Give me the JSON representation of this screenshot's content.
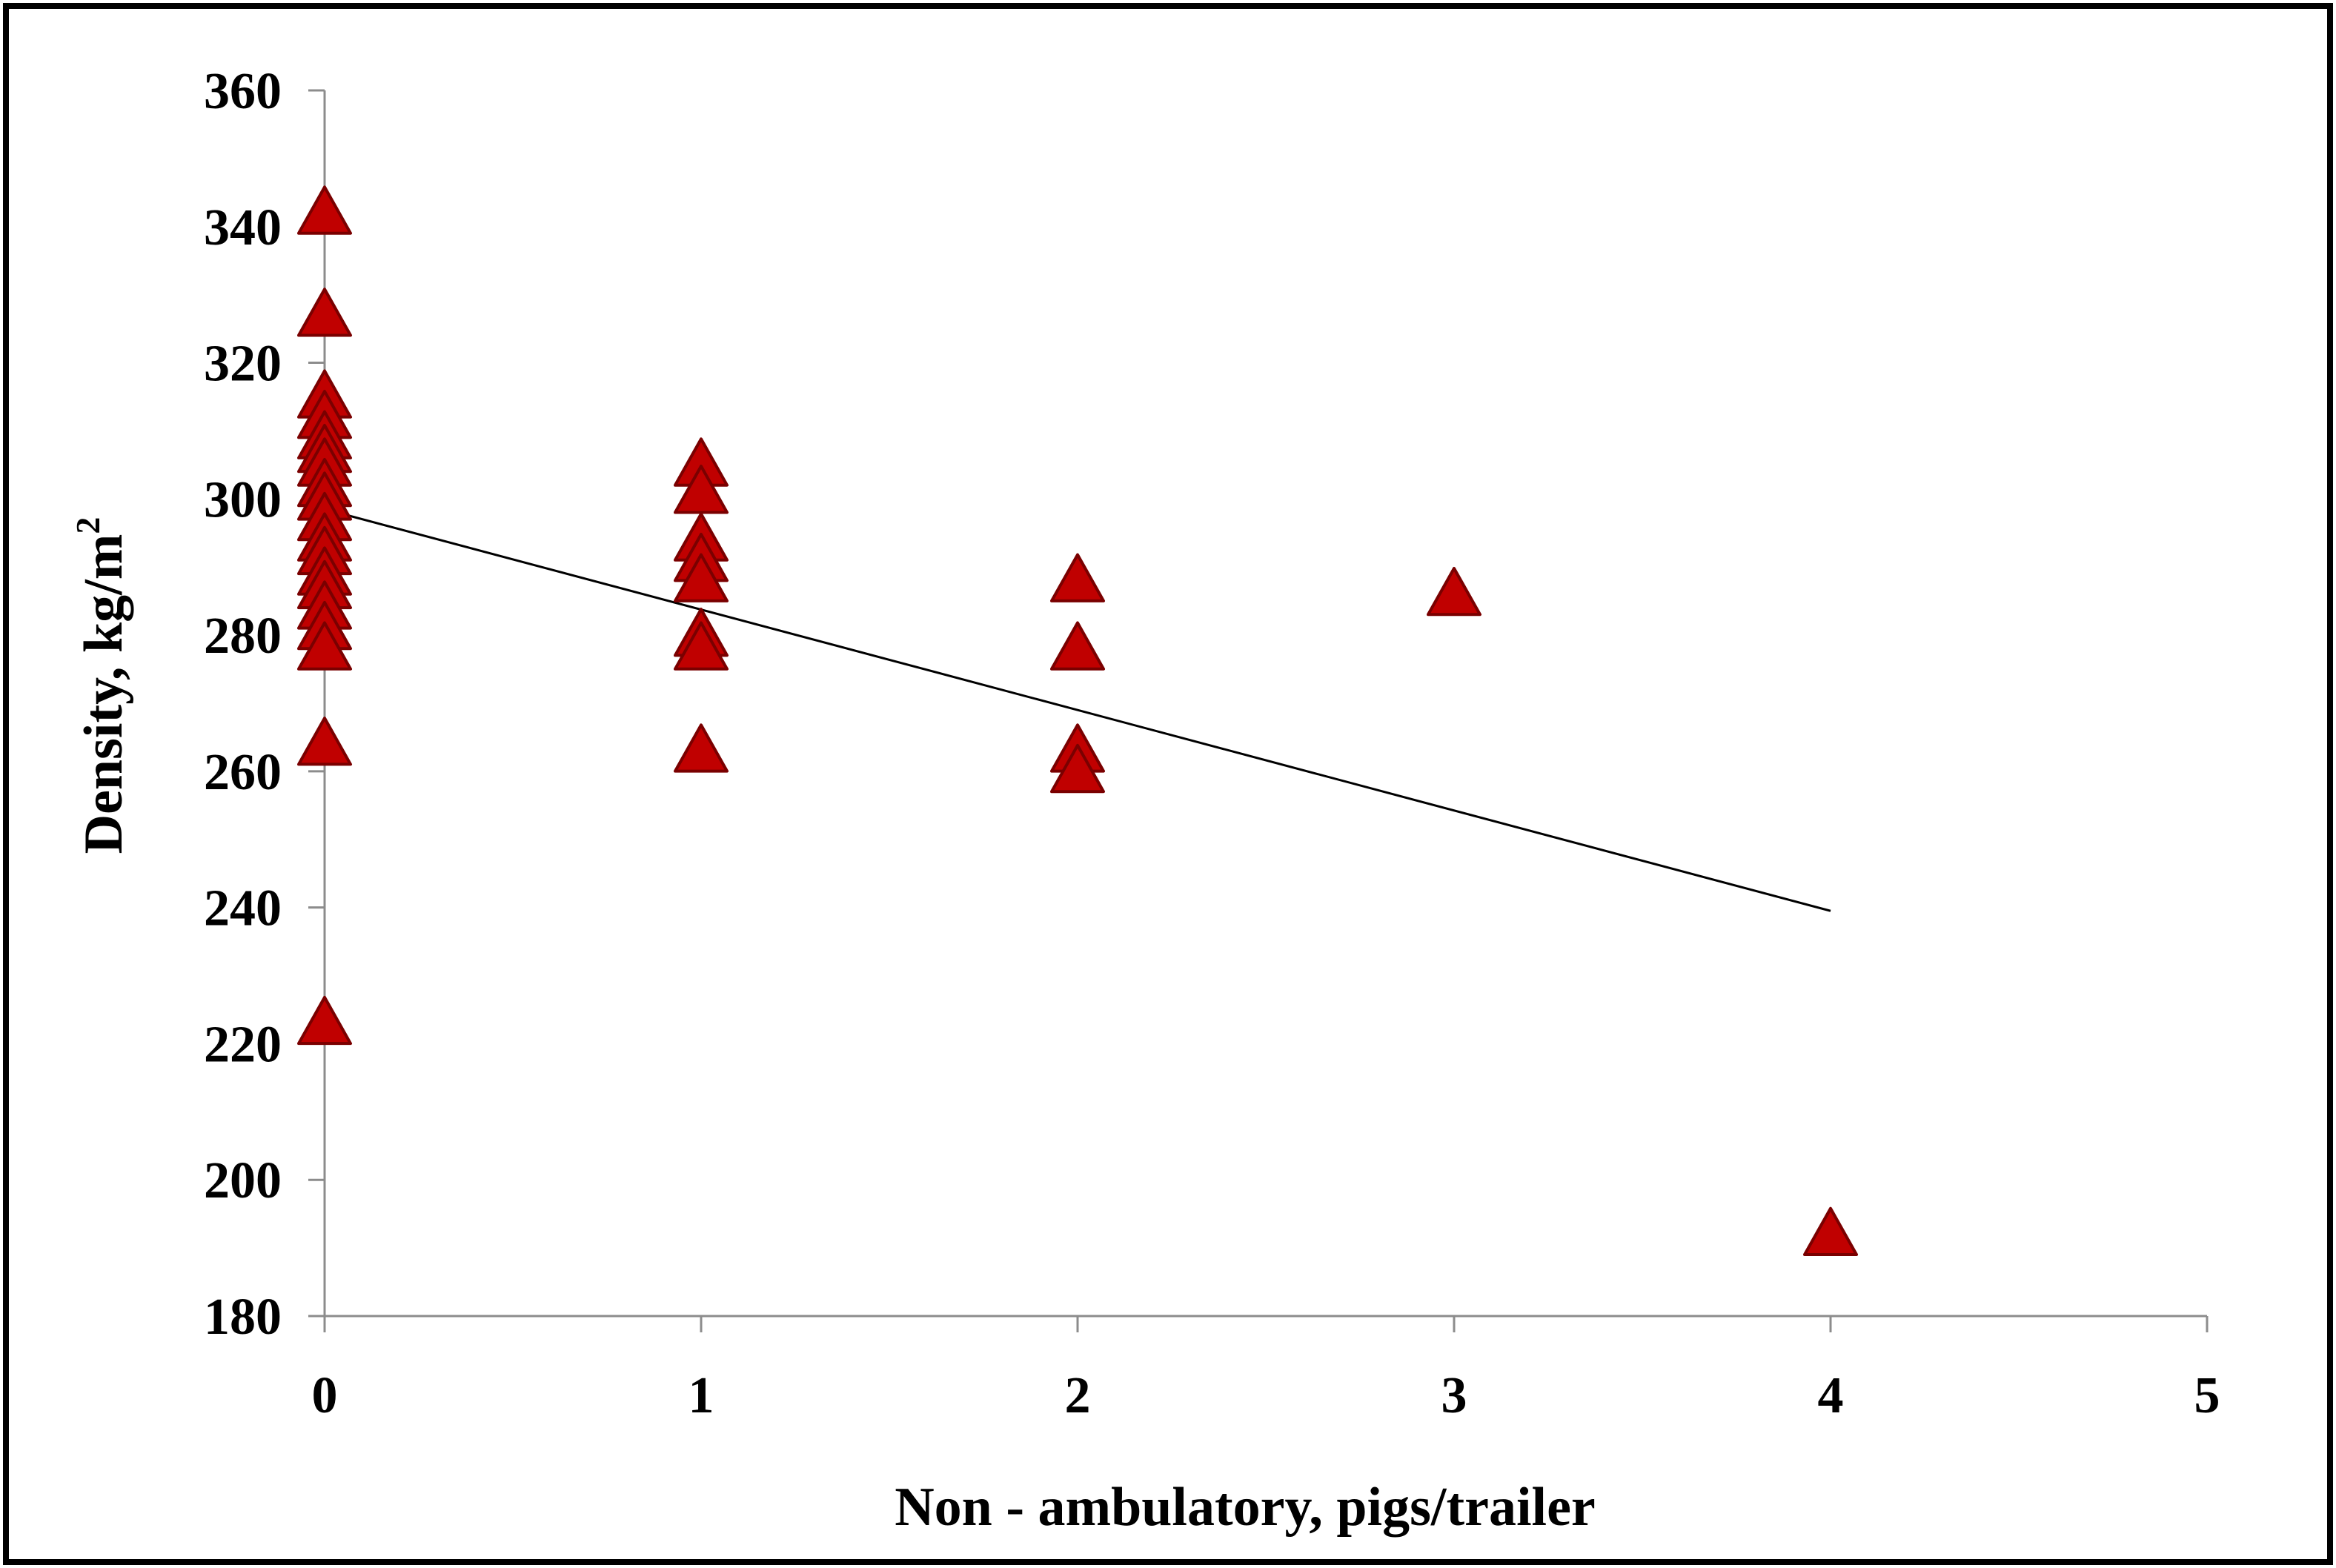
{
  "chart_data": {
    "type": "scatter",
    "title": "",
    "xlabel": "Non - ambulatory, pigs/trailer",
    "ylabel": "Density, kg/m",
    "ylabel_superscript": "2",
    "xlim": [
      0,
      5
    ],
    "ylim": [
      180,
      360
    ],
    "x_ticks": [
      0,
      1,
      2,
      3,
      4,
      5
    ],
    "y_ticks": [
      180,
      200,
      220,
      240,
      260,
      280,
      300,
      320,
      340,
      360
    ],
    "grid": false,
    "legend": "none",
    "marker": "triangle",
    "marker_color": "#c00000",
    "marker_edge_color": "#7a0000",
    "series": [
      {
        "points": [
          [
            0,
            342
          ],
          [
            0,
            327
          ],
          [
            0,
            315
          ],
          [
            0,
            312
          ],
          [
            0,
            309
          ],
          [
            0,
            307
          ],
          [
            0,
            305
          ],
          [
            0,
            302
          ],
          [
            0,
            300
          ],
          [
            0,
            297
          ],
          [
            0,
            294
          ],
          [
            0,
            292
          ],
          [
            0,
            289
          ],
          [
            0,
            287
          ],
          [
            0,
            284
          ],
          [
            0,
            281
          ],
          [
            0,
            278
          ],
          [
            0,
            264
          ],
          [
            0,
            223
          ],
          [
            1,
            305
          ],
          [
            1,
            301
          ],
          [
            1,
            294
          ],
          [
            1,
            291
          ],
          [
            1,
            288
          ],
          [
            1,
            280
          ],
          [
            1,
            278
          ],
          [
            1,
            263
          ],
          [
            2,
            288
          ],
          [
            2,
            278
          ],
          [
            2,
            263
          ],
          [
            2,
            260
          ],
          [
            3,
            286
          ],
          [
            4,
            192
          ]
        ]
      }
    ],
    "trendline": {
      "x": [
        0,
        4
      ],
      "y": [
        298.5,
        239.5
      ],
      "color": "#000000"
    }
  }
}
